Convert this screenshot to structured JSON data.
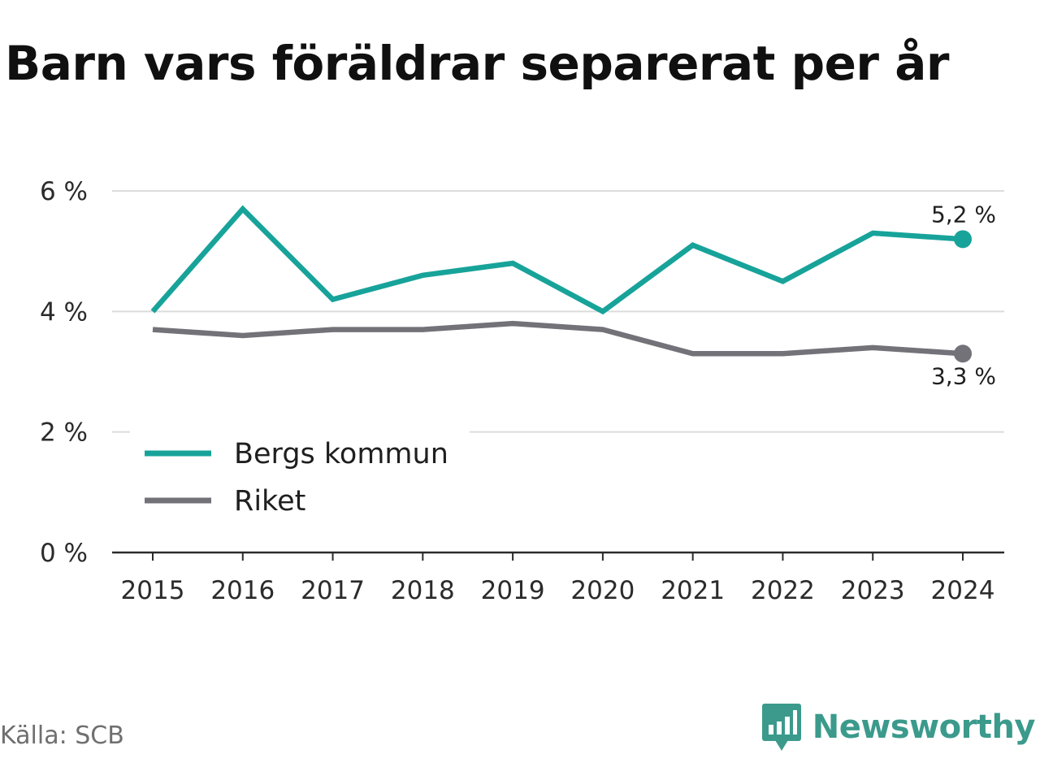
{
  "title": "Barn vars föräldrar separerat per år",
  "source": "Källa: SCB",
  "brand": {
    "name": "Newsworthy",
    "icon": "newsworthy-logo-icon",
    "color": "#3b9a8c"
  },
  "chart_data": {
    "type": "line",
    "title": "Barn vars föräldrar separerat per år",
    "x": [
      "2015",
      "2016",
      "2017",
      "2018",
      "2019",
      "2020",
      "2021",
      "2022",
      "2023",
      "2024"
    ],
    "ylim": [
      0,
      6
    ],
    "y_ticks": [
      0,
      2,
      4,
      6
    ],
    "y_tick_labels": [
      "0 %",
      "2 %",
      "4 %",
      "6 %"
    ],
    "grid": true,
    "legend": "bottom-left",
    "series": [
      {
        "name": "Bergs kommun",
        "color": "#17a39a",
        "values": [
          4.0,
          5.7,
          4.2,
          4.6,
          4.8,
          4.0,
          5.1,
          4.5,
          5.3,
          5.2
        ],
        "end_label": "5,2 %"
      },
      {
        "name": "Riket",
        "color": "#737278",
        "values": [
          3.7,
          3.6,
          3.7,
          3.7,
          3.8,
          3.7,
          3.3,
          3.3,
          3.4,
          3.3
        ],
        "end_label": "3,3 %"
      }
    ]
  }
}
